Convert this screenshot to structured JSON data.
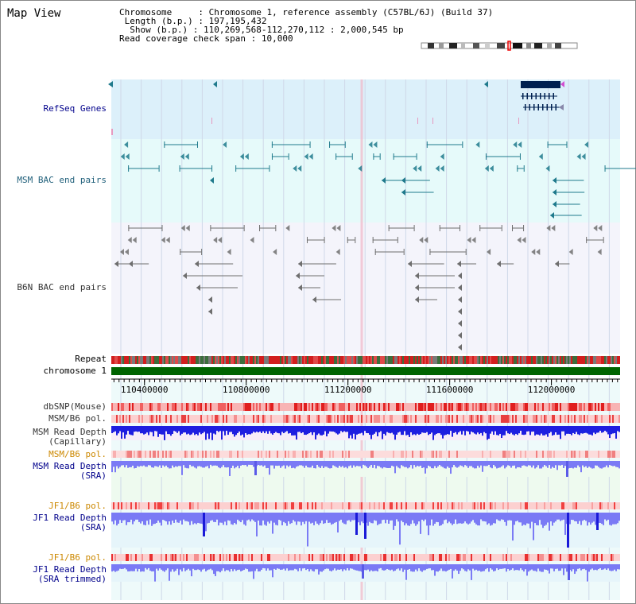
{
  "page": {
    "title": "Map View"
  },
  "info": {
    "chromosome_label": "Chromosome    ",
    "chromosome_value": "Chromosome 1, reference assembly (C57BL/6J) (Build 37)",
    "length_label": " Length (b.p.)",
    "length_value": "197,195,432",
    "show_label": "  Show (b.p.)",
    "show_value": "110,269,568-112,270,112 : 2,000,545 bp",
    "span_label": "Read coverage check span",
    "span_value": "10,000"
  },
  "tracks": {
    "refseq": "RefSeq Genes",
    "msm_bac": "MSM BAC end pairs",
    "b6n_bac": "B6N BAC end pairs",
    "repeat": "Repeat",
    "chromosome": "chromosome 1",
    "dbsnp": "dbSNP(Mouse)",
    "msm_b6_pol": "MSM/B6 pol.",
    "msm_read_depth_cap_1": "MSM Read Depth",
    "msm_read_depth_cap_2": "(Capillary)",
    "msm_b6_pol_2": "MSM/B6 pol.",
    "msm_read_depth_sra_1": "MSM Read Depth",
    "msm_read_depth_sra_2": "(SRA)",
    "jf1_b6_pol": "JF1/B6 pol.",
    "jf1_read_depth_sra_1": "JF1 Read Depth",
    "jf1_read_depth_sra_2": "(SRA)",
    "jf1_b6_pol_2": "JF1/B6 pol.",
    "jf1_read_depth_trim_1": "JF1 Read Depth",
    "jf1_read_depth_trim_2": "(SRA trimmed)"
  },
  "ruler": {
    "tick_labels": [
      "110400000",
      "110800000",
      "111200000",
      "111600000",
      "112000000"
    ],
    "tick_values": [
      110400000,
      110800000,
      111200000,
      111600000,
      112000000
    ],
    "range_start": 110269568,
    "range_end": 112270112
  },
  "colors": {
    "refseq_bg": "#dcf0fa",
    "msm_bg": "#e6fafa",
    "b6n_bg": "#f4f4fb",
    "gene": "#002050",
    "msm_feature": "#1f7a8c",
    "b6n_feature": "#6e6e6e",
    "chromosome_bar": "#006400",
    "read_depth_blue": "#1e1ee0",
    "read_depth_light": "#7a7af5"
  }
}
